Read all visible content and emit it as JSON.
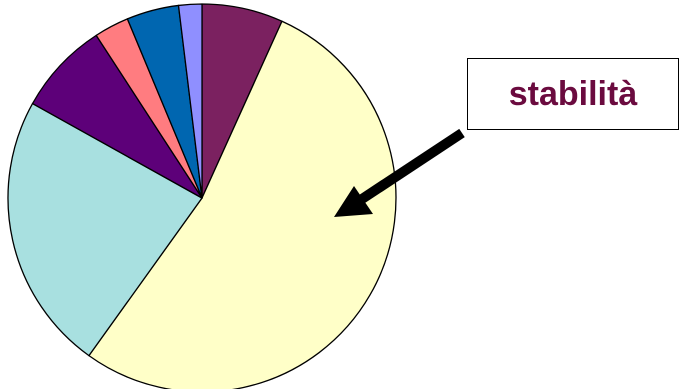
{
  "chart_data": {
    "type": "pie",
    "title": "",
    "start_angle_deg": 0,
    "direction": "clockwise",
    "slices": [
      {
        "value": 7,
        "color": "#7b2160"
      },
      {
        "value": 55,
        "color": "#ffffc8"
      },
      {
        "value": 24,
        "color": "#a8e0e0"
      },
      {
        "value": 8,
        "color": "#5d0079"
      },
      {
        "value": 3,
        "color": "#ff7c80"
      },
      {
        "value": 4.5,
        "color": "#0066b0"
      },
      {
        "value": 2,
        "color": "#8f8fff"
      }
    ],
    "annotation": {
      "text": "stabilità",
      "text_color": "#6b0b3f",
      "target_slice": 1
    }
  }
}
